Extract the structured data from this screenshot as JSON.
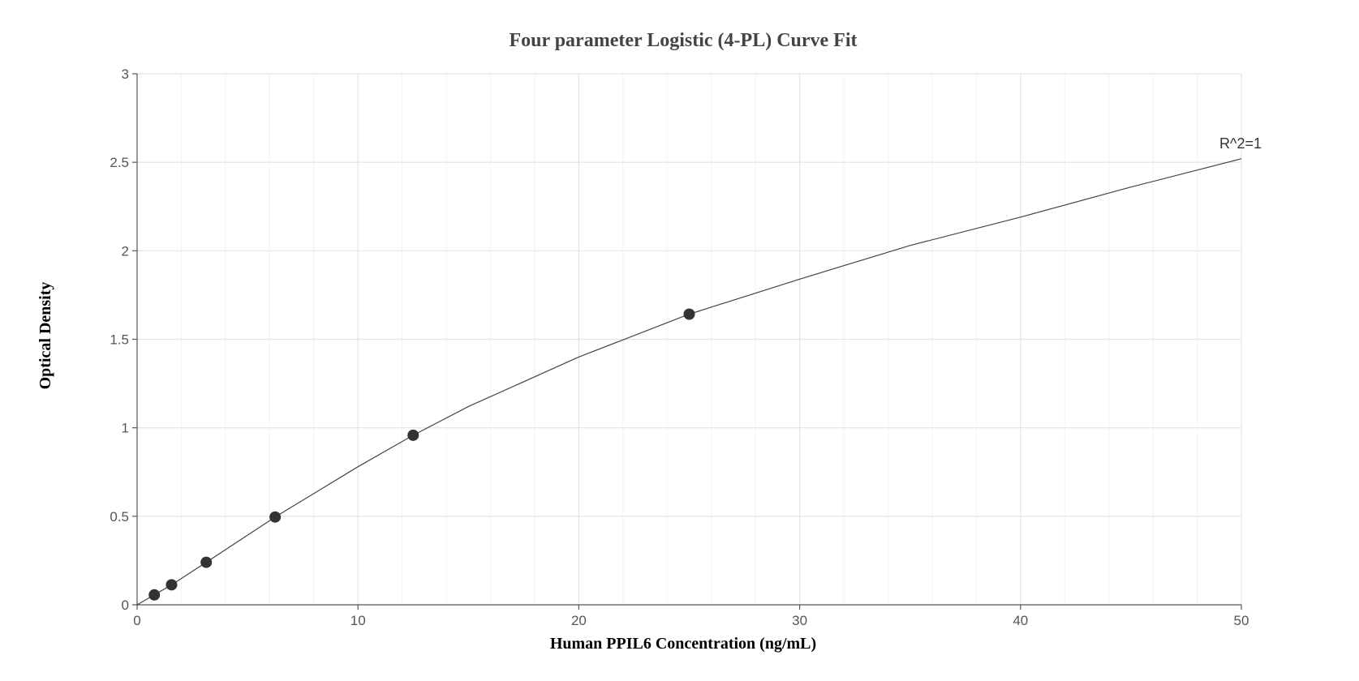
{
  "chart_data": {
    "type": "scatter",
    "title": "Four parameter Logistic (4-PL) Curve Fit",
    "xlabel": "Human PPIL6 Concentration (ng/mL)",
    "ylabel": "Optical Density",
    "xlim": [
      0,
      50
    ],
    "ylim": [
      0,
      3
    ],
    "x_ticks": [
      0,
      10,
      20,
      30,
      40,
      50
    ],
    "x_tick_labels": [
      "0",
      "10",
      "20",
      "30",
      "40",
      "50"
    ],
    "y_ticks": [
      0,
      0.5,
      1,
      1.5,
      2,
      2.5,
      3
    ],
    "y_tick_labels": [
      "0",
      "0.5",
      "1",
      "1.5",
      "2",
      "2.5",
      "3"
    ],
    "grid": true,
    "series": [
      {
        "type": "scatter",
        "x": [
          0.78,
          1.56,
          3.13,
          6.25,
          12.5,
          25
        ],
        "y": [
          0.056,
          0.113,
          0.24,
          0.496,
          0.958,
          1.642
        ],
        "color": "#333333"
      },
      {
        "type": "line",
        "x": [
          0,
          0.78,
          1.56,
          3.13,
          6.25,
          10,
          12.5,
          15,
          20,
          25,
          30,
          35,
          40,
          45,
          50
        ],
        "y": [
          0.0,
          0.056,
          0.113,
          0.24,
          0.496,
          0.78,
          0.958,
          1.12,
          1.4,
          1.642,
          1.84,
          2.03,
          2.19,
          2.36,
          2.52
        ],
        "color": "#444444"
      }
    ],
    "annotation": {
      "text": "R^2=1",
      "x": 50,
      "y": 2.52
    }
  }
}
